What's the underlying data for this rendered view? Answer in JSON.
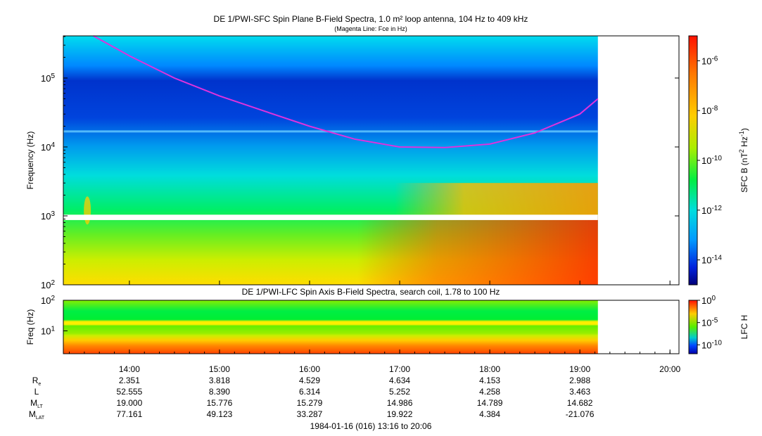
{
  "chart_data": [
    {
      "type": "heatmap",
      "title": "DE 1/PWI-SFC  Spin Plane B-Field Spectra, 1.0 m² loop antenna, 104 Hz to 409 kHz",
      "subtitle": "(Magenta Line: Fce in Hz)",
      "ylabel": "Frequency (Hz)",
      "yscale": "log",
      "ylim": [
        100,
        409000
      ],
      "yticks": [
        {
          "base": "10",
          "exp": "2"
        },
        {
          "base": "10",
          "exp": "3"
        },
        {
          "base": "10",
          "exp": "4"
        },
        {
          "base": "10",
          "exp": "5"
        }
      ],
      "colorbar": {
        "label": "SFC B (nT",
        "label_exp1": "2",
        "label_mid": " Hz",
        "label_exp2": "-1",
        "label_end": ")",
        "scale": "log",
        "range": [
          1e-15,
          1e-05
        ],
        "ticks": [
          {
            "base": "10",
            "exp": "-6"
          },
          {
            "base": "10",
            "exp": "-8"
          },
          {
            "base": "10",
            "exp": "-10"
          },
          {
            "base": "10",
            "exp": "-12"
          },
          {
            "base": "10",
            "exp": "-14"
          }
        ]
      },
      "fce_line": {
        "color": "#dd33dd",
        "x": [
          "13:36",
          "14:00",
          "14:30",
          "15:00",
          "15:30",
          "16:00",
          "16:30",
          "17:00",
          "17:30",
          "18:00",
          "18:30",
          "19:00",
          "19:12"
        ],
        "y": [
          409000,
          210000,
          100000,
          55000,
          33000,
          20000,
          13000,
          10000,
          9800,
          11000,
          16000,
          30000,
          50000
        ]
      },
      "gap_band_hz": [
        870,
        1040
      ],
      "data_end_time": "19:12"
    },
    {
      "type": "heatmap",
      "title": "DE 1/PWI-LFC  Spin Axis B-Field Spectra, search coil, 1.78 to 100 Hz",
      "ylabel": "Freq (Hz)",
      "yscale": "log",
      "ylim": [
        1.78,
        100
      ],
      "yticks": [
        {
          "base": "10",
          "exp": "1"
        },
        {
          "base": "10",
          "exp": "2"
        }
      ],
      "colorbar": {
        "label": "LFC H",
        "scale": "log",
        "range": [
          1e-12,
          1
        ],
        "ticks": [
          {
            "base": "10",
            "exp": "0"
          },
          {
            "base": "10",
            "exp": "-5"
          },
          {
            "base": "10",
            "exp": "-10"
          }
        ]
      },
      "data_end_time": "19:12"
    }
  ],
  "time_axis": {
    "start": "13:16",
    "end": "20:06",
    "ticks": [
      "14:00",
      "15:00",
      "16:00",
      "17:00",
      "18:00",
      "19:00",
      "20:00"
    ]
  },
  "ephemeris": {
    "rows": [
      {
        "label": "R",
        "sub": "e",
        "values": [
          "2.351",
          "3.818",
          "4.529",
          "4.634",
          "4.153",
          "2.988"
        ]
      },
      {
        "label": "L",
        "sub": "",
        "values": [
          "52.555",
          "8.390",
          "6.314",
          "5.252",
          "4.258",
          "3.463"
        ]
      },
      {
        "label": "M",
        "sub": "LT",
        "values": [
          "19.000",
          "15.776",
          "15.279",
          "14.986",
          "14.789",
          "14.682"
        ]
      },
      {
        "label": "M",
        "sub": "LAT",
        "values": [
          "77.161",
          "49.123",
          "33.287",
          "19.922",
          "4.384",
          "-21.076"
        ]
      }
    ],
    "footer": "1984-01-16 (016) 13:16 to 20:06"
  }
}
